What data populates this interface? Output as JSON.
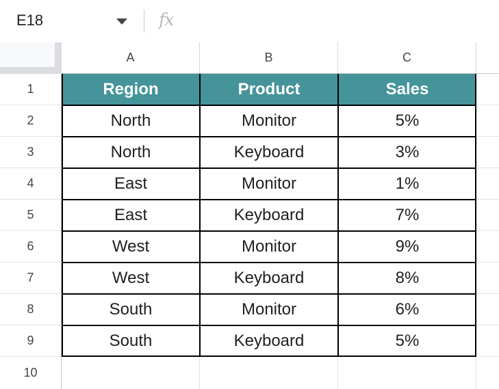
{
  "name_box": {
    "value": "E18"
  },
  "formula_bar": {
    "fx_label": "fx",
    "value": ""
  },
  "columns": [
    "A",
    "B",
    "C"
  ],
  "rows": [
    "1",
    "2",
    "3",
    "4",
    "5",
    "6",
    "7",
    "8",
    "9",
    "10"
  ],
  "table": {
    "headers": [
      "Region",
      "Product",
      "Sales"
    ],
    "rows": [
      [
        "North",
        "Monitor",
        "5%"
      ],
      [
        "North",
        "Keyboard",
        "3%"
      ],
      [
        "East",
        "Monitor",
        "1%"
      ],
      [
        "East",
        "Keyboard",
        "7%"
      ],
      [
        "West",
        "Monitor",
        "9%"
      ],
      [
        "West",
        "Keyboard",
        "8%"
      ],
      [
        "South",
        "Monitor",
        "6%"
      ],
      [
        "South",
        "Keyboard",
        "5%"
      ]
    ]
  },
  "colors": {
    "header_fill": "#45949a",
    "header_text": "#ffffff",
    "border": "#000000"
  }
}
